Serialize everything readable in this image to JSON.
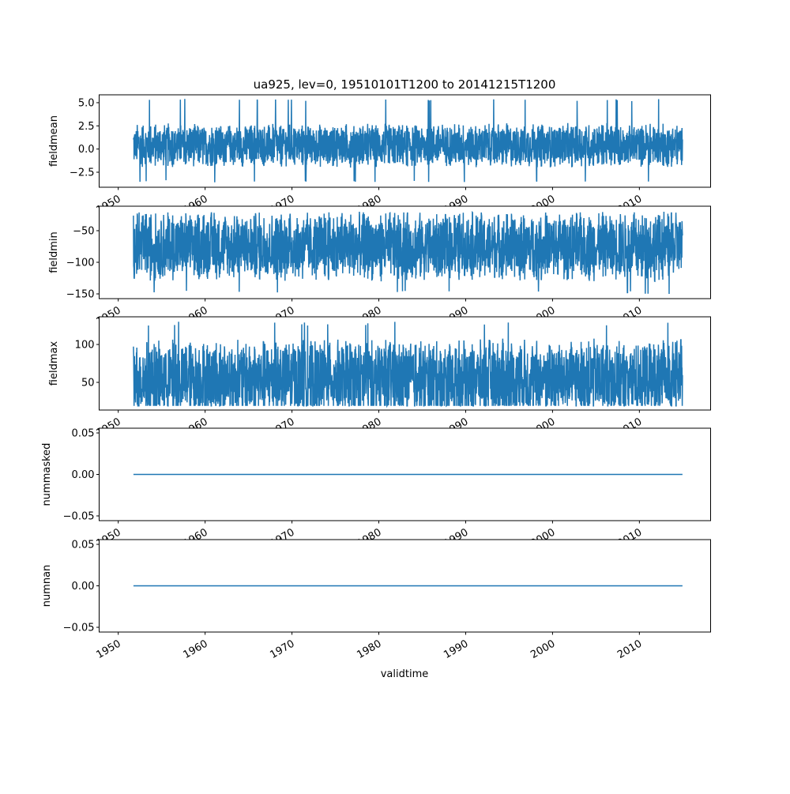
{
  "chart_data": {
    "type": "line",
    "title": "ua925, lev=0, 19510101T1200 to 20141215T1200",
    "xlabel": "validtime",
    "x_range": [
      1951.75,
      2014.96
    ],
    "xlim": [
      1947.8,
      2018.2
    ],
    "x_ticks": [
      1950,
      1960,
      1970,
      1980,
      1990,
      2000,
      2010
    ],
    "line_color": "#1f77b4",
    "grid": false,
    "panels": [
      {
        "ylabel": "fieldmean",
        "ylim": [
          -4.12,
          5.85
        ],
        "y_ticks": [
          -2.5,
          0.0,
          2.5,
          5.0
        ],
        "y_tick_labels": [
          "−2.5",
          "0.0",
          "2.5",
          "5.0"
        ],
        "typical_range": [
          -2.0,
          2.8
        ],
        "center": 0.4,
        "extremes": [
          -3.6,
          5.4
        ],
        "kind": "noise"
      },
      {
        "ylabel": "fieldmin",
        "ylim": [
          -157.5,
          -11.25
        ],
        "y_ticks": [
          -150,
          -100,
          -50
        ],
        "y_tick_labels": [
          "−150",
          "−100",
          "−50"
        ],
        "typical_range": [
          -133,
          -22
        ],
        "center": -75,
        "extremes": [
          -150,
          -20
        ],
        "kind": "noise"
      },
      {
        "ylabel": "fieldmax",
        "ylim": [
          13.5,
          136.5
        ],
        "y_ticks": [
          50,
          100
        ],
        "y_tick_labels": [
          "50",
          "100"
        ],
        "typical_range": [
          22,
          128
        ],
        "center": 55,
        "extremes": [
          19,
          130
        ],
        "kind": "noise"
      },
      {
        "ylabel": "nummasked",
        "ylim": [
          -0.0557,
          0.0557
        ],
        "y_ticks": [
          -0.05,
          0.0,
          0.05
        ],
        "y_tick_labels": [
          "−0.05",
          "0.00",
          "0.05"
        ],
        "constant": 0,
        "kind": "flat"
      },
      {
        "ylabel": "numnan",
        "ylim": [
          -0.0557,
          0.0557
        ],
        "y_ticks": [
          -0.05,
          0.0,
          0.05
        ],
        "y_tick_labels": [
          "−0.05",
          "0.00",
          "0.05"
        ],
        "constant": 0,
        "kind": "flat"
      }
    ]
  }
}
